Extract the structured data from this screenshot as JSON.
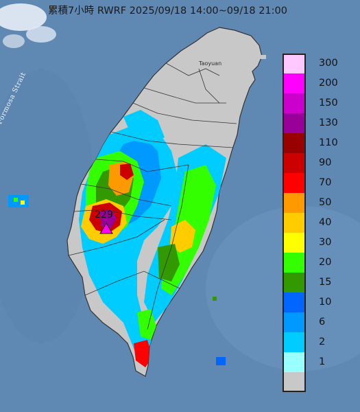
{
  "title": "累積7小時 RWRF 2025/09/18 14:00~09/18 21:00",
  "map_labels": {
    "strait": "Formosa Strait",
    "city_taoyuan": "Taoyuan",
    "max_value": "229"
  },
  "legend": {
    "items": [
      {
        "label": "300",
        "color": "#ffc8ff"
      },
      {
        "label": "200",
        "color": "#ff00ff"
      },
      {
        "label": "150",
        "color": "#cc00cc"
      },
      {
        "label": "130",
        "color": "#990099"
      },
      {
        "label": "110",
        "color": "#990000"
      },
      {
        "label": "90",
        "color": "#cc0000"
      },
      {
        "label": "70",
        "color": "#ff0000"
      },
      {
        "label": "50",
        "color": "#ff9900"
      },
      {
        "label": "40",
        "color": "#ffcc00"
      },
      {
        "label": "30",
        "color": "#ffff00"
      },
      {
        "label": "20",
        "color": "#33ff00"
      },
      {
        "label": "15",
        "color": "#339900"
      },
      {
        "label": "10",
        "color": "#0066ff"
      },
      {
        "label": "6",
        "color": "#0099ff"
      },
      {
        "label": "2",
        "color": "#00ccff"
      },
      {
        "label": "1",
        "color": "#99ffff"
      },
      {
        "label": "",
        "color": "#c8c8c8"
      }
    ]
  },
  "colors": {
    "sea": "#5f88b3",
    "land": "#c8c8c8",
    "border": "#333333"
  }
}
